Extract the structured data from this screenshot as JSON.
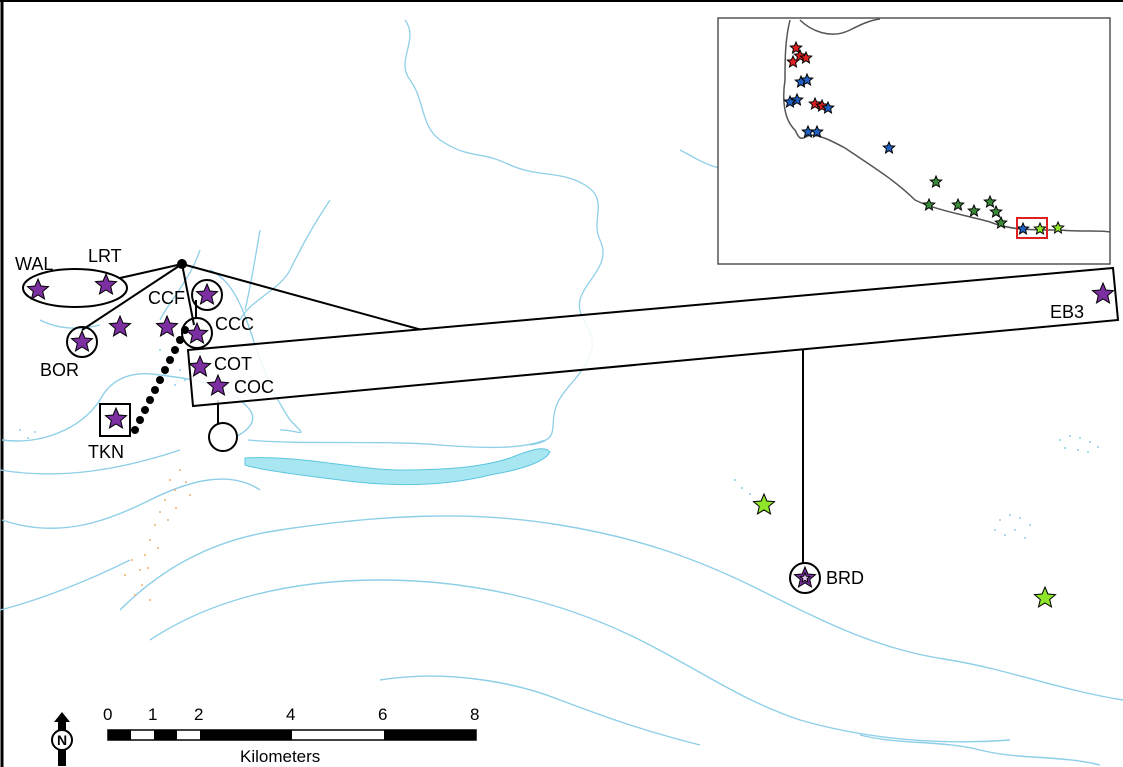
{
  "sites": [
    {
      "code": "WAL",
      "color": "#7b2fa0"
    },
    {
      "code": "LRT",
      "color": "#7b2fa0"
    },
    {
      "code": "CCF",
      "color": "#7b2fa0"
    },
    {
      "code": "CCC",
      "color": "#7b2fa0"
    },
    {
      "code": "BOR",
      "color": "#7b2fa0"
    },
    {
      "code": "COT",
      "color": "#7b2fa0"
    },
    {
      "code": "COC",
      "color": "#7b2fa0"
    },
    {
      "code": "TKN",
      "color": "#7b2fa0"
    },
    {
      "code": "EB3",
      "color": "#7b2fa0"
    },
    {
      "code": "BRD",
      "color": "#7b2fa0"
    }
  ],
  "colors": {
    "site_star": "#7b2fa0",
    "other_star": "#8ee52a",
    "water": "#8ecfe8",
    "lake_fill": "#a8e6f2",
    "sand": "#f0b070",
    "coast": "#2b2b2b",
    "inset_red": "#e02020",
    "inset_blue": "#2060c0",
    "inset_green": "#3a8a3a"
  },
  "scale_bar": {
    "ticks": [
      "0",
      "1",
      "2",
      "4",
      "6",
      "8"
    ],
    "unit": "Kilometers"
  },
  "north_arrow": {
    "letter": "N"
  },
  "inset_map": {
    "highlight_color": "#e02020"
  }
}
